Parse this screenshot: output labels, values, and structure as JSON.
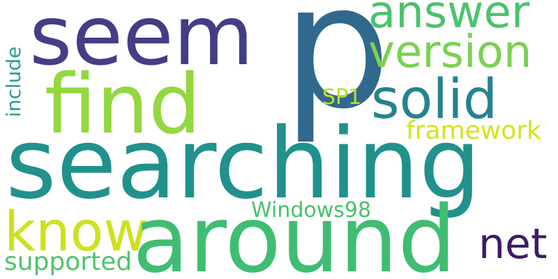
{
  "words": [
    {
      "text": "p",
      "color": "#31688e"
    },
    {
      "text": "seem",
      "color": "#433e85"
    },
    {
      "text": "answer",
      "color": "#4cc26c"
    },
    {
      "text": "version",
      "color": "#7ad151"
    },
    {
      "text": "find",
      "color": "#93d741"
    },
    {
      "text": "solid",
      "color": "#26828e"
    },
    {
      "text": "include",
      "color": "#2a9d8f"
    },
    {
      "text": "SP1",
      "color": "#bddf26"
    },
    {
      "text": "framework",
      "color": "#d7e219"
    },
    {
      "text": "searching",
      "color": "#21918c"
    },
    {
      "text": "know",
      "color": "#cde11d"
    },
    {
      "text": "around",
      "color": "#40bd72"
    },
    {
      "text": "Windows98",
      "color": "#4ac16d"
    },
    {
      "text": "net",
      "color": "#3d1a67"
    },
    {
      "text": "supported",
      "color": "#50c46a"
    }
  ],
  "background": "#ffffff"
}
